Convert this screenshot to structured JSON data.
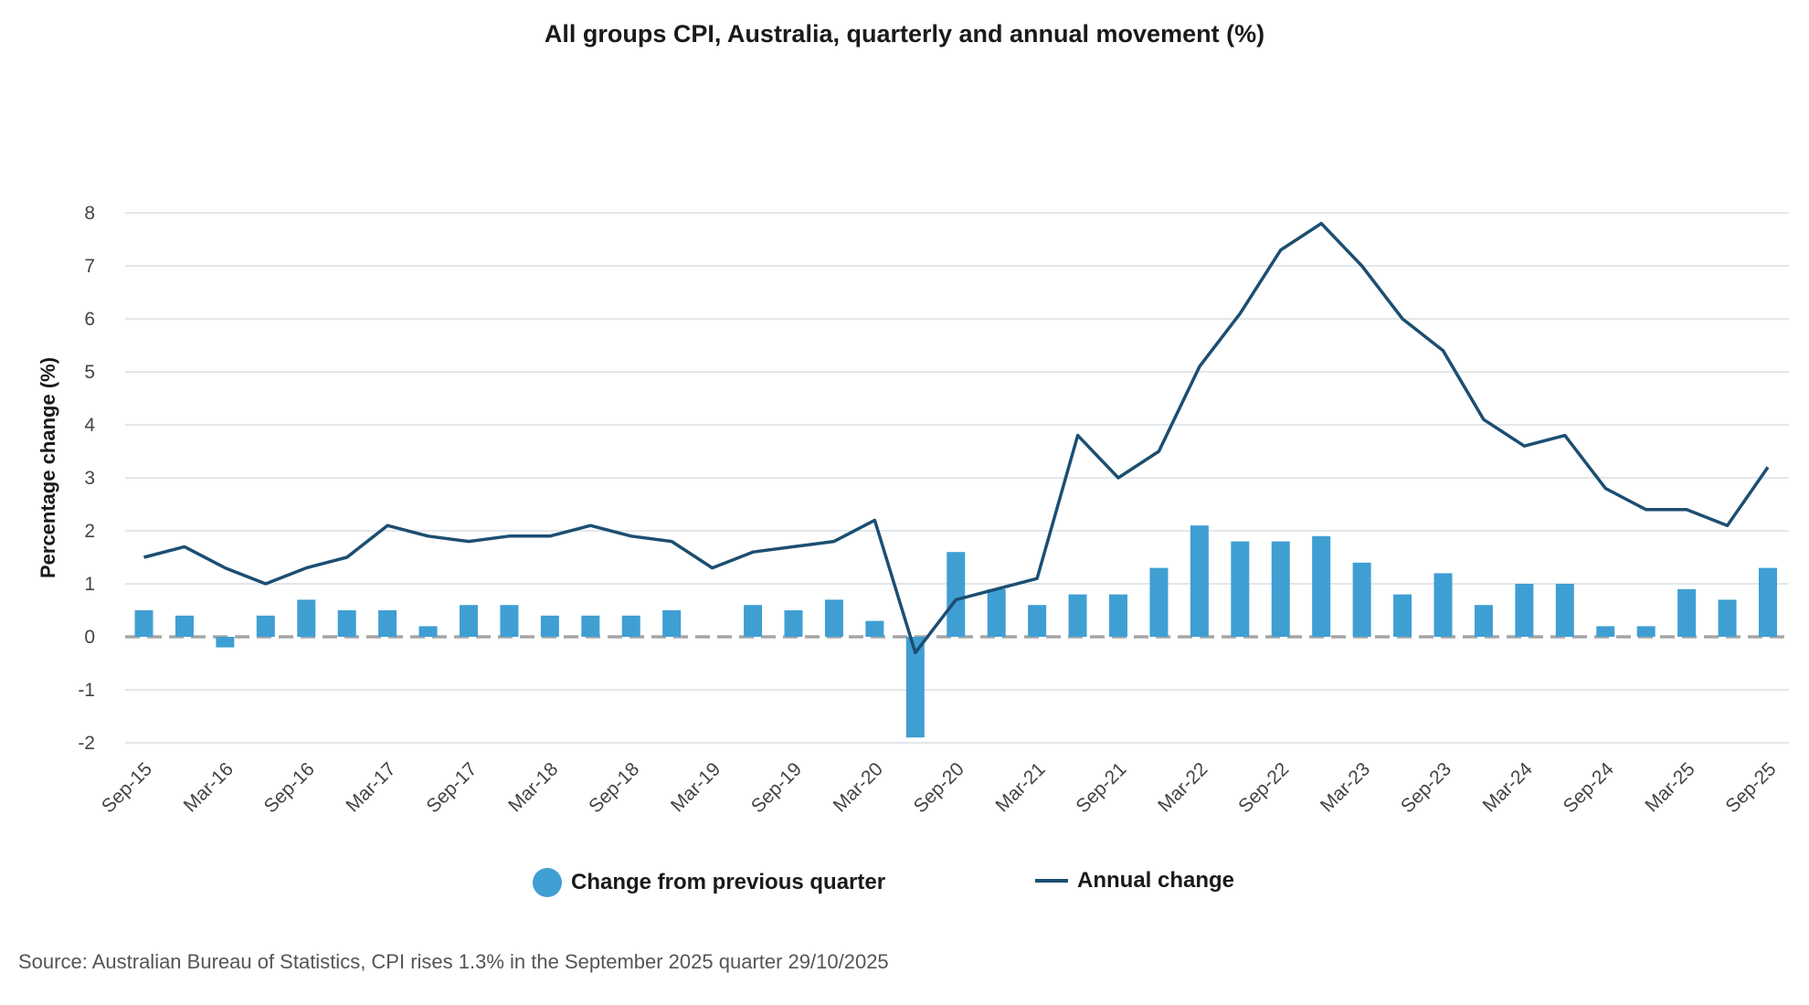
{
  "chart_data": {
    "type": "bar+line",
    "title": "All groups CPI, Australia, quarterly and annual movement (%)",
    "xlabel": "",
    "ylabel": "Percentage change (%)",
    "ylim": [
      -2,
      8
    ],
    "yticks": [
      -2,
      -1,
      0,
      1,
      2,
      3,
      4,
      5,
      6,
      7,
      8
    ],
    "categories": [
      "Sep-15",
      "Dec-15",
      "Mar-16",
      "Jun-16",
      "Sep-16",
      "Dec-16",
      "Mar-17",
      "Jun-17",
      "Sep-17",
      "Dec-17",
      "Mar-18",
      "Jun-18",
      "Sep-18",
      "Dec-18",
      "Mar-19",
      "Jun-19",
      "Sep-19",
      "Dec-19",
      "Mar-20",
      "Jun-20",
      "Sep-20",
      "Dec-20",
      "Mar-21",
      "Jun-21",
      "Sep-21",
      "Dec-21",
      "Mar-22",
      "Jun-22",
      "Sep-22",
      "Dec-22",
      "Mar-23",
      "Jun-23",
      "Sep-23",
      "Dec-23",
      "Mar-24",
      "Jun-24",
      "Sep-24",
      "Dec-24",
      "Mar-25",
      "Jun-25",
      "Sep-25"
    ],
    "tick_labels": [
      "Sep-15",
      "Mar-16",
      "Sep-16",
      "Mar-17",
      "Sep-17",
      "Mar-18",
      "Sep-18",
      "Mar-19",
      "Sep-19",
      "Mar-20",
      "Sep-20",
      "Mar-21",
      "Sep-21",
      "Mar-22",
      "Sep-22",
      "Mar-23",
      "Sep-23",
      "Mar-24",
      "Sep-24",
      "Mar-25",
      "Sep-25"
    ],
    "series": [
      {
        "name": "Change from previous quarter",
        "type": "bar",
        "color": "#3f9fd3",
        "values": [
          0.5,
          0.4,
          -0.2,
          0.4,
          0.7,
          0.5,
          0.5,
          0.2,
          0.6,
          0.6,
          0.4,
          0.4,
          0.4,
          0.5,
          0.0,
          0.6,
          0.5,
          0.7,
          0.3,
          -1.9,
          1.6,
          0.9,
          0.6,
          0.8,
          0.8,
          1.3,
          2.1,
          1.8,
          1.8,
          1.9,
          1.4,
          0.8,
          1.2,
          0.6,
          1.0,
          1.0,
          0.2,
          0.2,
          0.9,
          0.7,
          1.3
        ]
      },
      {
        "name": "Annual change",
        "type": "line",
        "color": "#1c4e72",
        "values": [
          1.5,
          1.7,
          1.3,
          1.0,
          1.3,
          1.5,
          2.1,
          1.9,
          1.8,
          1.9,
          1.9,
          2.1,
          1.9,
          1.8,
          1.3,
          1.6,
          1.7,
          1.8,
          2.2,
          -0.3,
          0.7,
          0.9,
          1.1,
          3.8,
          3.0,
          3.5,
          5.1,
          6.1,
          7.3,
          7.8,
          7.0,
          6.0,
          5.4,
          4.1,
          3.6,
          3.8,
          2.8,
          2.4,
          2.4,
          2.1,
          3.2
        ]
      }
    ],
    "legend": [
      "Change from previous quarter",
      "Annual change"
    ],
    "legend_position": "bottom",
    "grid": true
  },
  "source": "Source: Australian Bureau of Statistics, CPI rises 1.3% in the September 2025 quarter 29/10/2025"
}
